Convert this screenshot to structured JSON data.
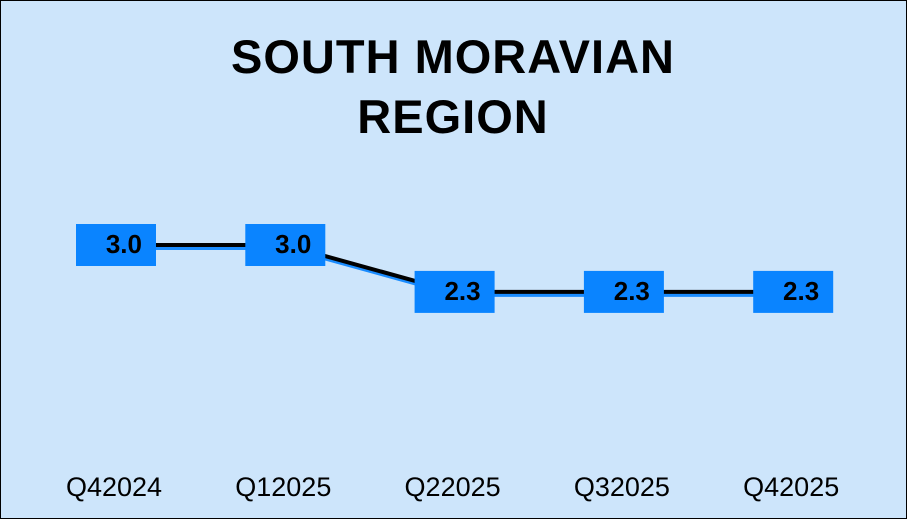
{
  "chart_data": {
    "type": "line",
    "title": "SOUTH MORAVIAN REGION",
    "categories": [
      "Q42024",
      "Q12025",
      "Q22025",
      "Q32025",
      "Q42025"
    ],
    "series": [
      {
        "color": "#000000",
        "values": [
          3.0,
          3.0,
          2.3,
          2.3,
          2.3
        ],
        "value_labels": [
          "3.0",
          "3.0",
          "2.3",
          "2.3",
          "2.3"
        ]
      }
    ]
  }
}
